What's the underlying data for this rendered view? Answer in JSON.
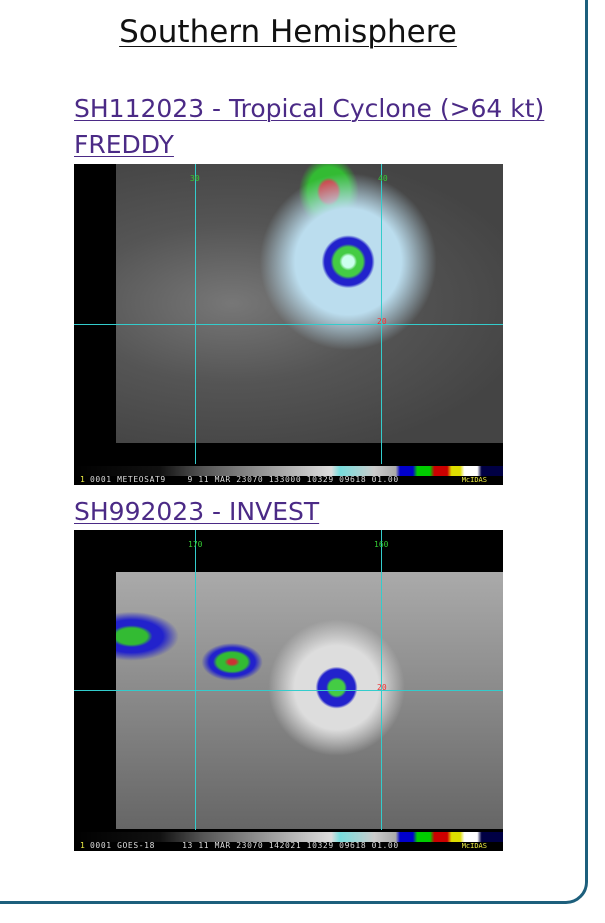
{
  "section_title": "Southern Hemisphere",
  "storms": [
    {
      "link_label": "SH112023 - Tropical Cyclone (>64 kt) FREDDY",
      "image": {
        "lon_labels": [
          "30",
          "40"
        ],
        "lat_label": "20",
        "caption": "0001 METEOSAT9    9 11 MAR 23070 133000 10329 09618 01.00",
        "frame": "1",
        "software": "McIDAS"
      }
    },
    {
      "link_label": "SH992023 - INVEST",
      "image": {
        "lon_labels": [
          "170",
          "160"
        ],
        "lat_label": "20",
        "caption": "0001 GOES-18     13 11 MAR 23070 142021 10329 09618 01.00",
        "frame": "1",
        "software": "McIDAS"
      }
    }
  ]
}
